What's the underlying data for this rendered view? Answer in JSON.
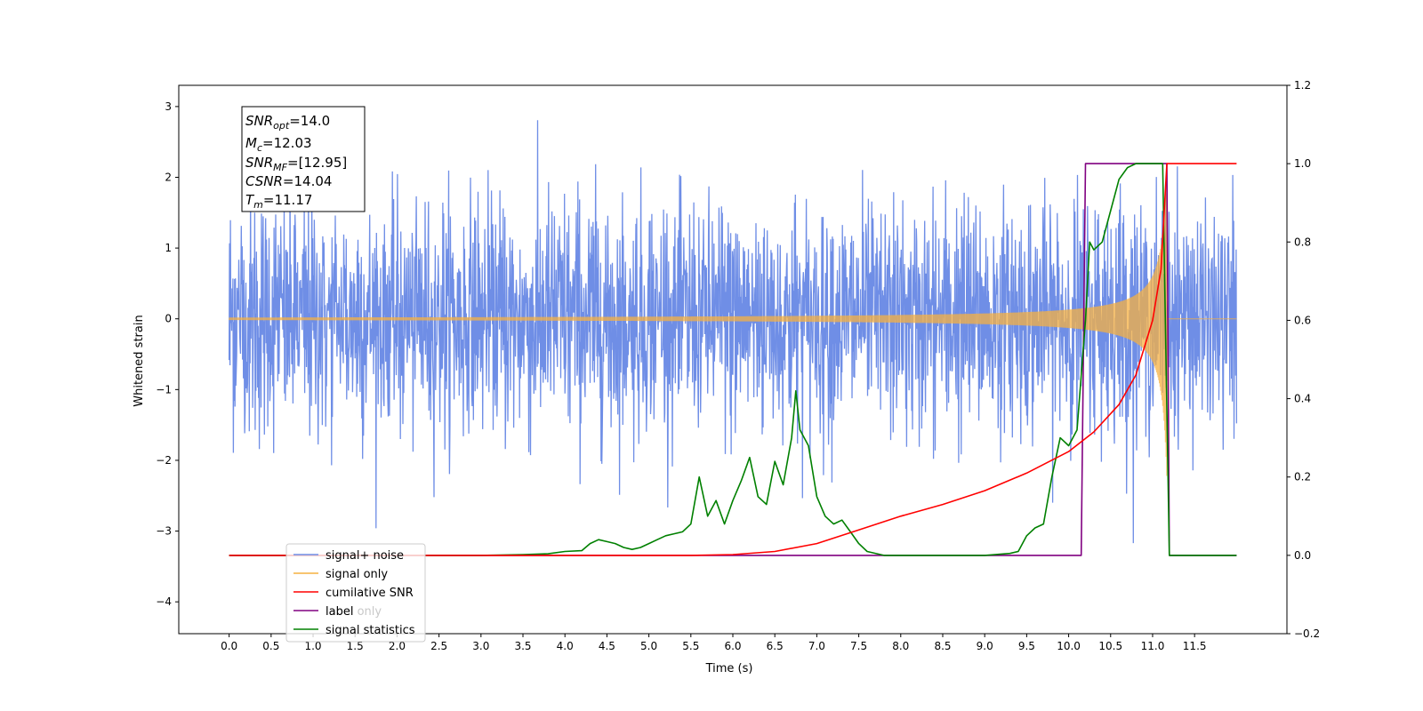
{
  "chart_data": {
    "type": "line",
    "xlabel": "Time (s)",
    "ylabel": "Whitened strain",
    "xlim": [
      -0.6,
      12.6
    ],
    "ylim": [
      -4.45,
      3.3
    ],
    "y2lim": [
      -0.2,
      1.2
    ],
    "x_ticks": [
      "0.0",
      "0.5",
      "1.0",
      "1.5",
      "2.0",
      "2.5",
      "3.0",
      "3.5",
      "4.0",
      "4.5",
      "5.0",
      "5.5",
      "6.0",
      "6.5",
      "7.0",
      "7.5",
      "8.0",
      "8.5",
      "9.0",
      "9.5",
      "10.0",
      "10.5",
      "11.0",
      "11.5"
    ],
    "y_ticks": [
      "−4",
      "−3",
      "−2",
      "−1",
      "0",
      "1",
      "2",
      "3"
    ],
    "y2_ticks": [
      "−0.2",
      "0.0",
      "0.2",
      "0.4",
      "0.6",
      "0.8",
      "1.0",
      "1.2"
    ],
    "grid": false,
    "legend_position": "lower-left",
    "annotation": {
      "snr_opt": "14.0",
      "mc": "12.03",
      "snr_mf": "[12.95]",
      "csnr": "14.04",
      "tm": "11.17"
    },
    "series": [
      {
        "name": "signal+ noise",
        "axis": "left",
        "color": "#6f8ee6",
        "description": "noise",
        "x_range": [
          0.0,
          12.0
        ],
        "amplitude_range": [
          -4.1,
          2.95
        ]
      },
      {
        "name": "signal only",
        "axis": "left",
        "color": "#f5b041",
        "x_range": [
          0.0,
          12.0
        ],
        "chirp_start": 6.5,
        "merger_time": 11.17,
        "peak_amplitude": 2.3
      },
      {
        "name": "cumilative SNR",
        "axis": "right",
        "color": "#ff0000",
        "x": [
          0.0,
          5.5,
          6.0,
          6.5,
          7.0,
          7.5,
          8.0,
          8.5,
          9.0,
          9.5,
          10.0,
          10.3,
          10.6,
          10.8,
          11.0,
          11.1,
          11.17,
          11.2,
          12.0
        ],
        "y": [
          0.0,
          0.0,
          0.002,
          0.01,
          0.03,
          0.065,
          0.1,
          0.13,
          0.165,
          0.21,
          0.265,
          0.315,
          0.385,
          0.46,
          0.6,
          0.73,
          1.0,
          1.0,
          1.0
        ]
      },
      {
        "name": "label",
        "axis": "right",
        "color": "#800080",
        "x": [
          0.0,
          10.15,
          10.2,
          11.17,
          11.2,
          12.0
        ],
        "y": [
          0.0,
          0.0,
          1.0,
          1.0,
          0.0,
          0.0
        ]
      },
      {
        "name": "label only",
        "axis": "right",
        "color": "#c8c8c8",
        "hidden": true
      },
      {
        "name": "signal statistics",
        "axis": "right",
        "color": "#008000",
        "x": [
          0.0,
          3.0,
          3.5,
          3.8,
          4.0,
          4.2,
          4.3,
          4.4,
          4.5,
          4.6,
          4.7,
          4.8,
          4.9,
          5.0,
          5.1,
          5.2,
          5.3,
          5.4,
          5.5,
          5.6,
          5.7,
          5.8,
          5.9,
          6.0,
          6.1,
          6.2,
          6.25,
          6.3,
          6.4,
          6.5,
          6.55,
          6.6,
          6.7,
          6.75,
          6.8,
          6.9,
          7.0,
          7.1,
          7.2,
          7.3,
          7.4,
          7.5,
          7.6,
          7.8,
          9.0,
          9.3,
          9.4,
          9.5,
          9.6,
          9.7,
          9.8,
          9.9,
          10.0,
          10.1,
          10.2,
          10.25,
          10.3,
          10.4,
          10.5,
          10.6,
          10.7,
          10.8,
          11.0,
          11.12,
          11.2,
          12.0
        ],
        "y": [
          0.0,
          0.0,
          0.002,
          0.004,
          0.01,
          0.012,
          0.03,
          0.04,
          0.035,
          0.03,
          0.02,
          0.015,
          0.02,
          0.03,
          0.04,
          0.05,
          0.055,
          0.06,
          0.08,
          0.2,
          0.1,
          0.14,
          0.08,
          0.14,
          0.19,
          0.25,
          0.2,
          0.15,
          0.13,
          0.24,
          0.21,
          0.18,
          0.3,
          0.42,
          0.32,
          0.28,
          0.15,
          0.1,
          0.08,
          0.09,
          0.06,
          0.03,
          0.01,
          0.0,
          0.0,
          0.005,
          0.01,
          0.05,
          0.07,
          0.08,
          0.2,
          0.3,
          0.28,
          0.32,
          0.6,
          0.8,
          0.78,
          0.8,
          0.88,
          0.96,
          0.99,
          1.0,
          1.0,
          1.0,
          0.0,
          0.0
        ]
      }
    ]
  }
}
